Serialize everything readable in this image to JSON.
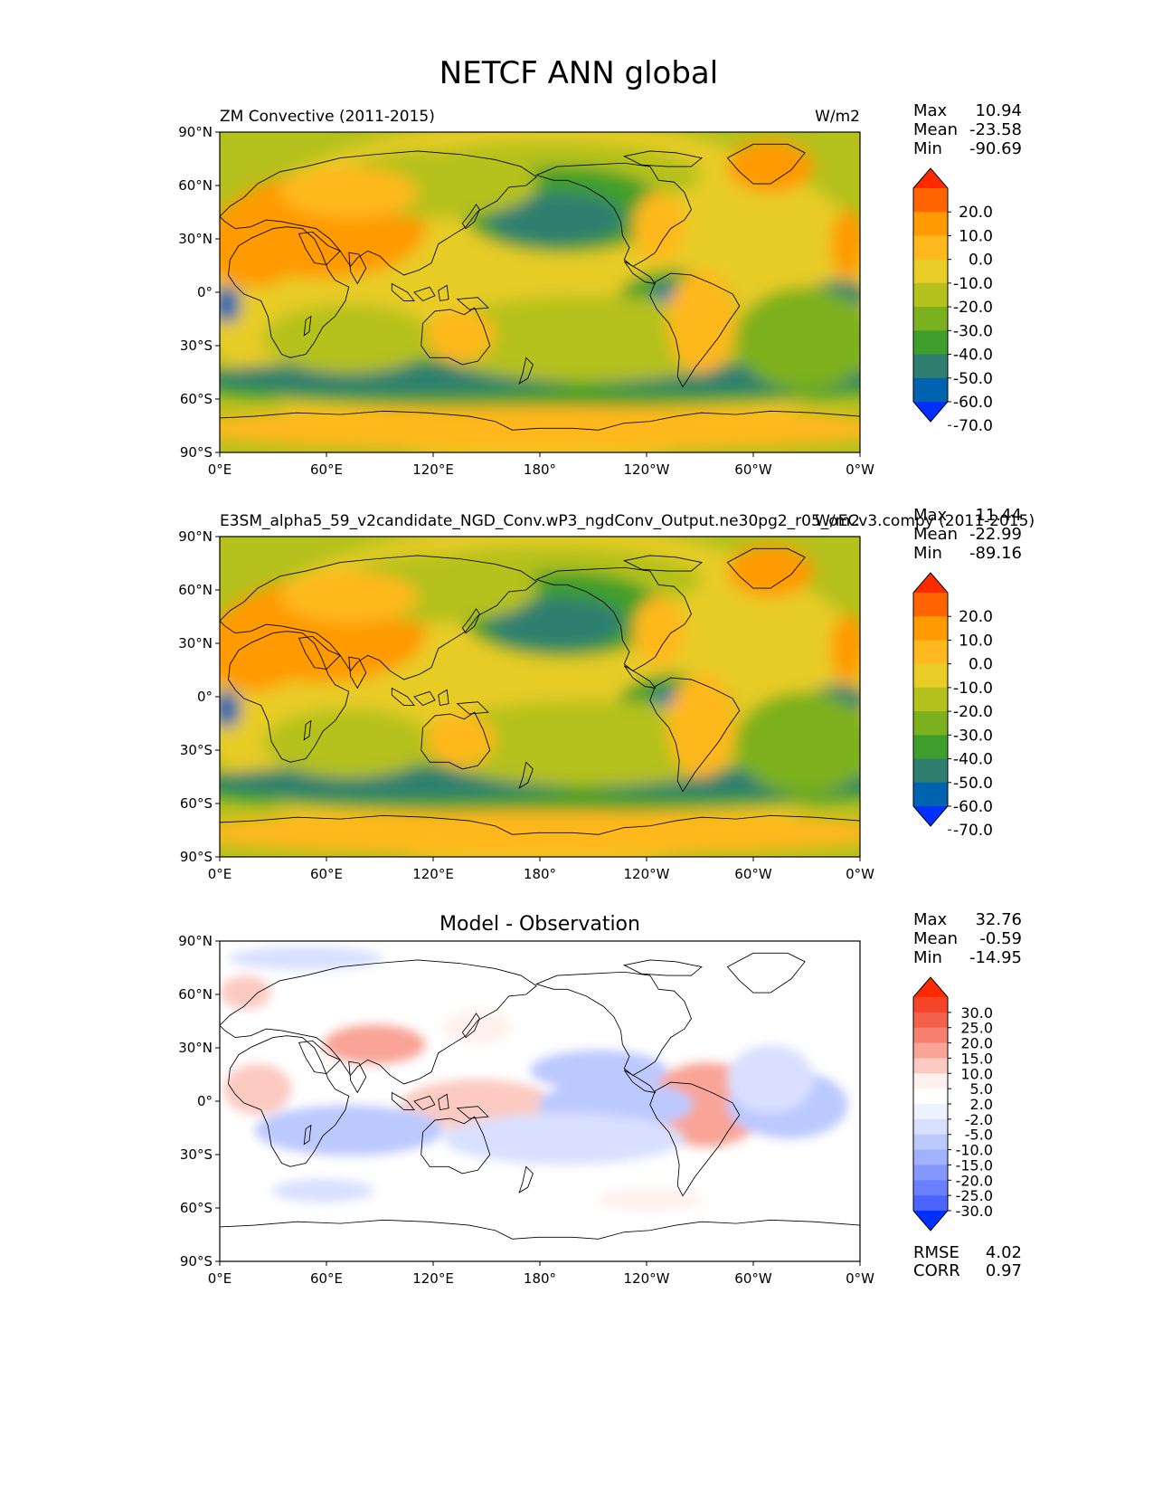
{
  "title": "NETCF ANN global",
  "lat_labels": [
    "90°N",
    "60°N",
    "30°N",
    "0°",
    "30°S",
    "60°S",
    "90°S"
  ],
  "lon_labels": [
    "0°E",
    "60°E",
    "120°E",
    "180°",
    "120°W",
    "60°W",
    "0°W"
  ],
  "stat_labels": {
    "max": "Max",
    "mean": "Mean",
    "min": "Min"
  },
  "full_colors": [
    "#ff2a00",
    "#ff6400",
    "#ff9a00",
    "#ffb81e",
    "#e8cc28",
    "#b5c11d",
    "#7bb01e",
    "#3f9e2c",
    "#2f7f70",
    "#0063b0",
    "#0030ff"
  ],
  "diff_colors": [
    "#ff2a00",
    "#f6462a",
    "#f3614c",
    "#f58070",
    "#f9a497",
    "#fccac1",
    "#fff1ee",
    "#ffffff",
    "#eef1ff",
    "#d9e0ff",
    "#bcc9ff",
    "#9fb1ff",
    "#8498ff",
    "#6a80ff",
    "#4b64ff",
    "#0030ff"
  ],
  "panels": [
    {
      "title_left": "ZM Convective (2011-2015)",
      "title_right": "W/m2",
      "title_center": "",
      "stats": {
        "max": "10.94",
        "mean": "-23.58",
        "min": "-90.69"
      },
      "colorbar_ticks": [
        "20.0",
        "10.0",
        "0.0",
        "-10.0",
        "-20.0",
        "-30.0",
        "-40.0",
        "-50.0",
        "-60.0",
        "-70.0"
      ],
      "kind": "full"
    },
    {
      "title_left": "E3SM_alpha5_59_v2candidate_NGD_Conv.wP3_ngdConv_Output.ne30pg2_r05_oECv3.compy (2011-2015)",
      "title_right": "W/m2",
      "title_center": "",
      "stats": {
        "max": "11.44",
        "mean": "-22.99",
        "min": "-89.16"
      },
      "colorbar_ticks": [
        "20.0",
        "10.0",
        "0.0",
        "-10.0",
        "-20.0",
        "-30.0",
        "-40.0",
        "-50.0",
        "-60.0",
        "-70.0"
      ],
      "kind": "full"
    },
    {
      "title_left": "",
      "title_right": "",
      "title_center": "Model - Observation",
      "stats": {
        "max": "32.76",
        "mean": "-0.59",
        "min": "-14.95"
      },
      "colorbar_ticks": [
        "30.0",
        "25.0",
        "20.0",
        "15.0",
        "10.0",
        "5.0",
        "2.0",
        "-2.0",
        "-5.0",
        "-10.0",
        "-15.0",
        "-20.0",
        "-25.0",
        "-30.0"
      ],
      "kind": "diff",
      "rmse": {
        "label": "RMSE",
        "value": "4.02"
      },
      "corr": {
        "label": "CORR",
        "value": "0.97"
      }
    }
  ]
}
